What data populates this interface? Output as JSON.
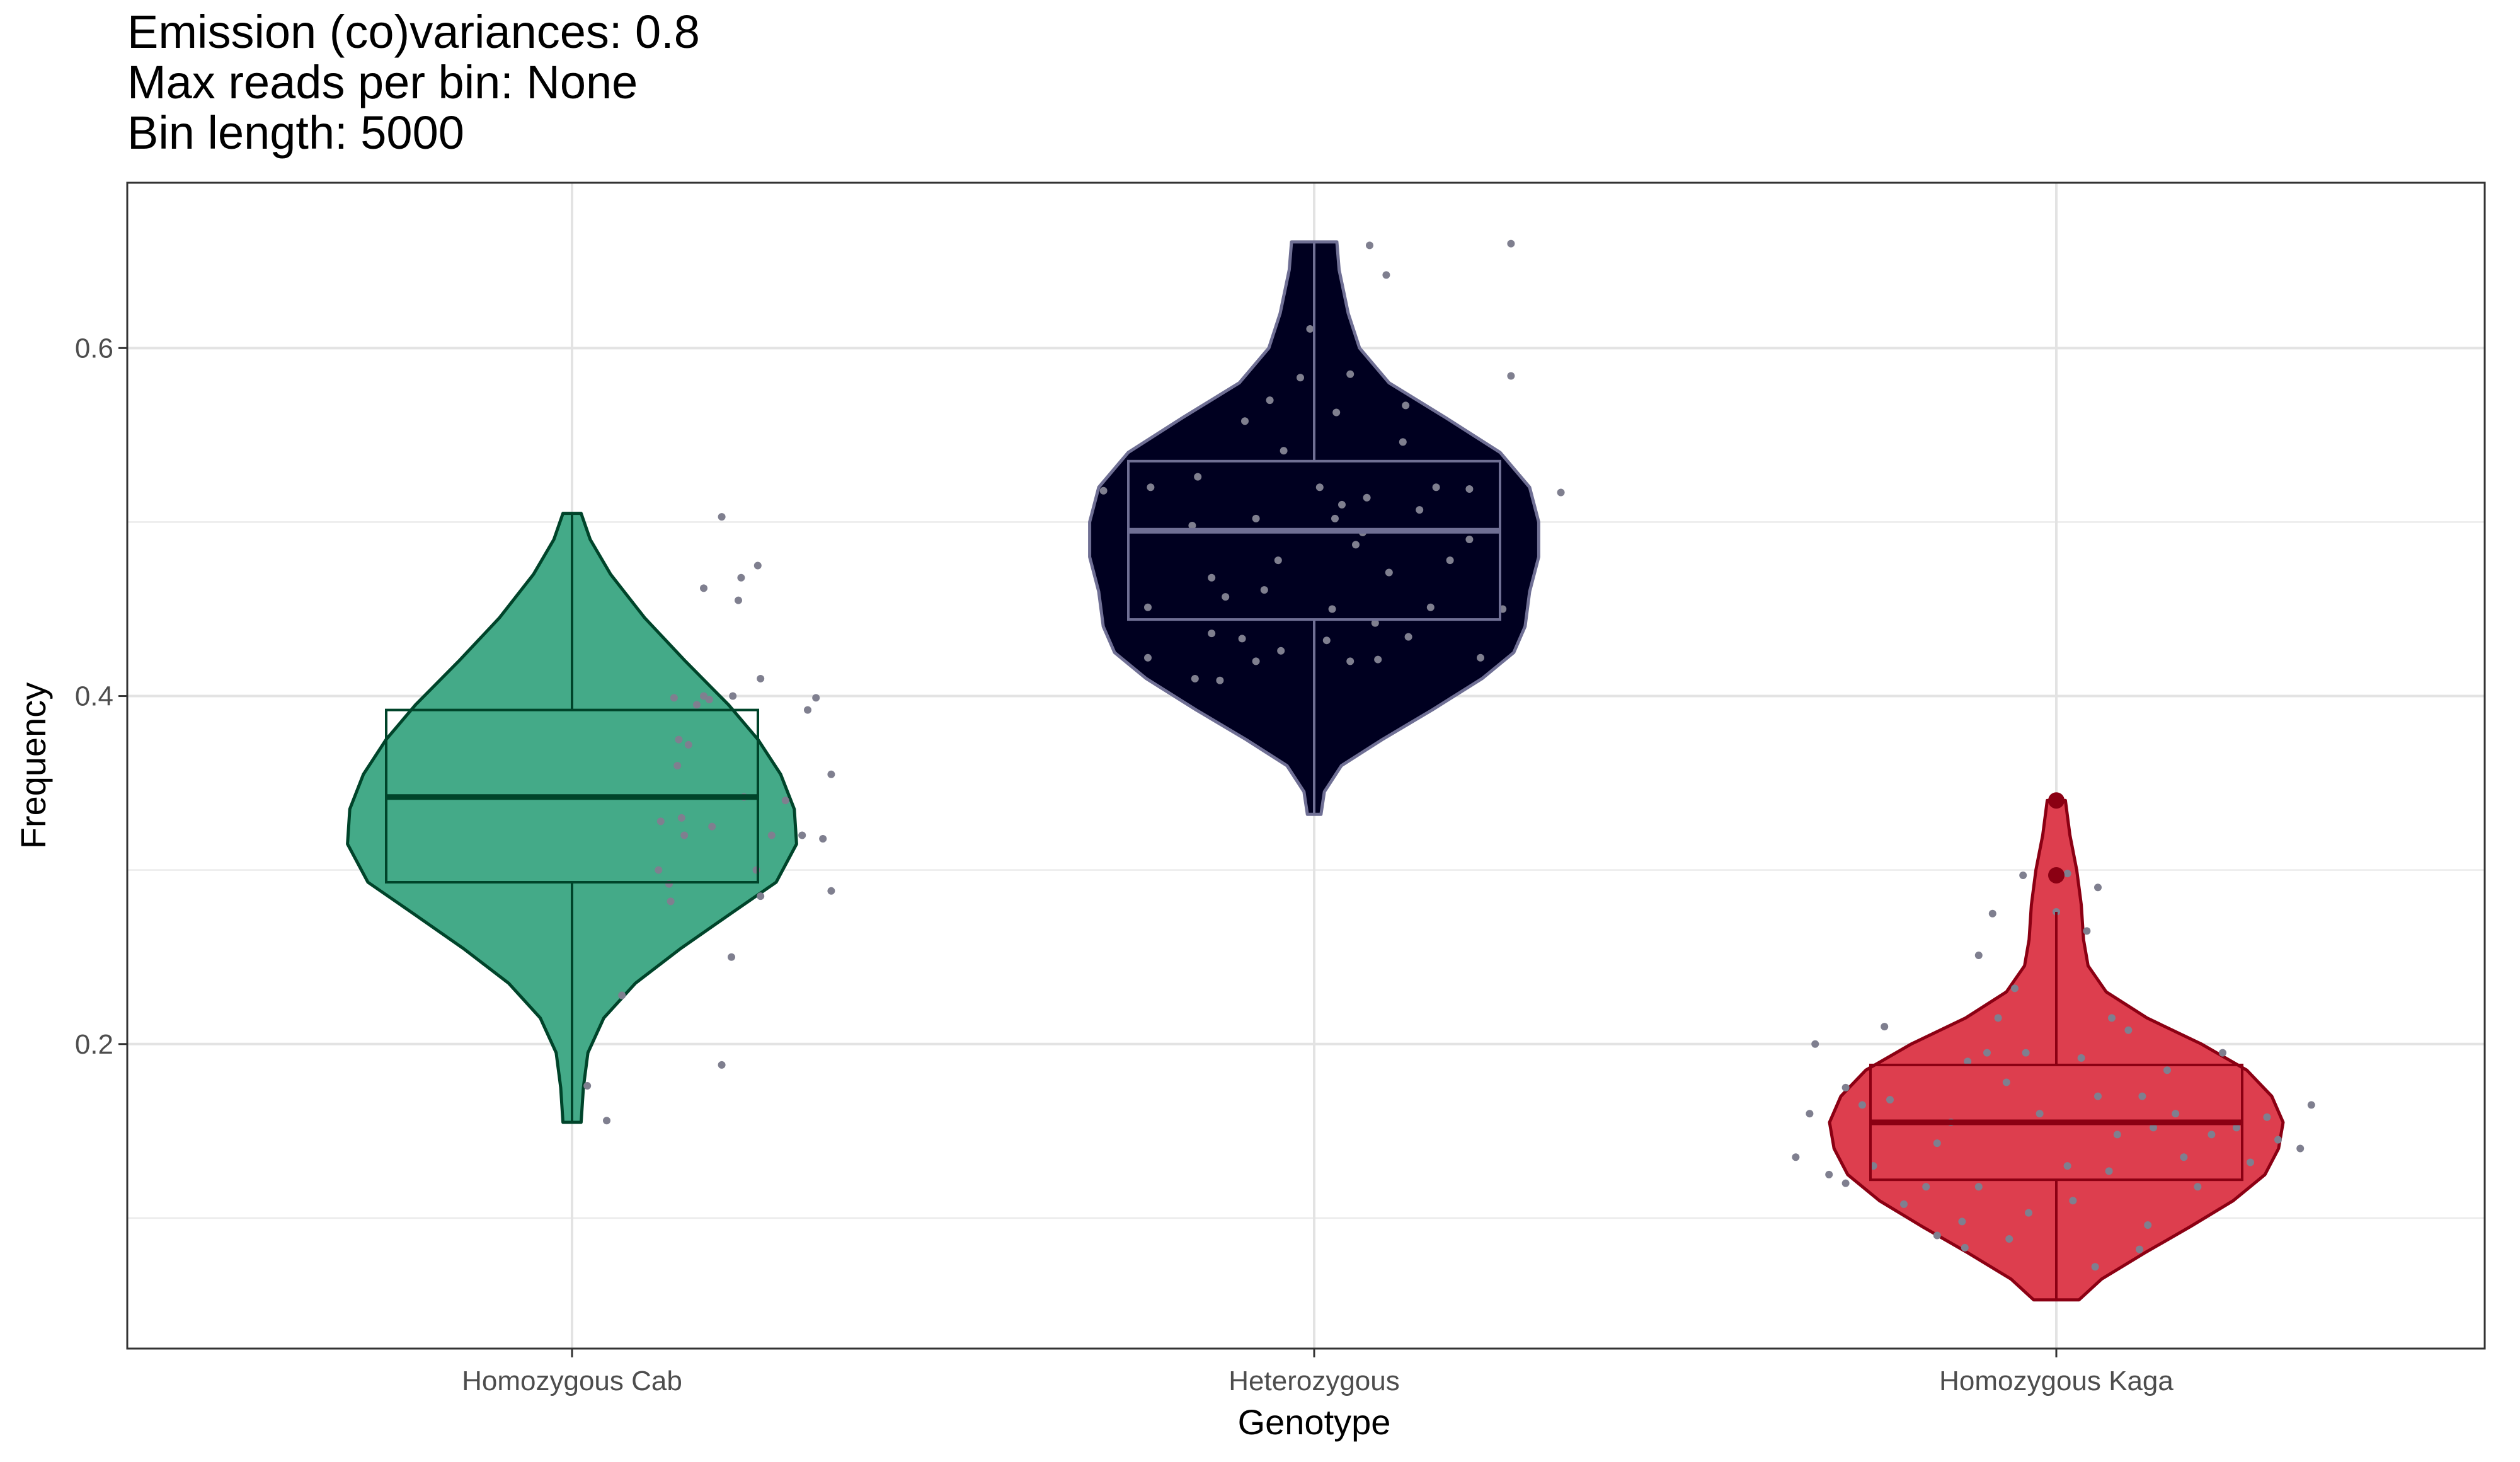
{
  "chart_data": {
    "type": "violin",
    "title_lines": [
      "Emission (co)variances: 0.8",
      "Max reads per bin: None",
      "Bin length: 5000"
    ],
    "xlabel": "Genotype",
    "ylabel": "Frequency",
    "ylim": [
      0.025,
      0.695
    ],
    "yticks": [
      0.2,
      0.4,
      0.6
    ],
    "ytick_labels": [
      "0.2",
      "0.4",
      "0.6"
    ],
    "grid": true,
    "categories": [
      "Homozygous Cab",
      "Heterozygous",
      "Homozygous Kaga"
    ],
    "series": [
      {
        "category": "Homozygous Cab",
        "fill": "#44AA88",
        "line": "#00442A",
        "median_line": "#00442A",
        "violin_range": [
          0.155,
          0.505
        ],
        "box": {
          "q1": 0.293,
          "median": 0.342,
          "q3": 0.392,
          "whisker_low": 0.155,
          "whisker_high": 0.505
        },
        "outliers": [],
        "violin_profile": [
          [
            0.155,
            0.04
          ],
          [
            0.175,
            0.05
          ],
          [
            0.195,
            0.07
          ],
          [
            0.215,
            0.14
          ],
          [
            0.235,
            0.28
          ],
          [
            0.255,
            0.48
          ],
          [
            0.275,
            0.7
          ],
          [
            0.293,
            0.9
          ],
          [
            0.315,
            0.99
          ],
          [
            0.335,
            0.98
          ],
          [
            0.355,
            0.92
          ],
          [
            0.375,
            0.82
          ],
          [
            0.395,
            0.69
          ],
          [
            0.42,
            0.5
          ],
          [
            0.445,
            0.32
          ],
          [
            0.47,
            0.17
          ],
          [
            0.49,
            0.08
          ],
          [
            0.505,
            0.04
          ]
        ],
        "points": [
          [
            0.312,
            0.3
          ],
          [
            0.385,
            0.375
          ],
          [
            0.368,
            0.399
          ],
          [
            0.32,
            0.328
          ],
          [
            0.356,
            0.282
          ],
          [
            0.38,
            0.36
          ],
          [
            0.405,
            0.32
          ],
          [
            0.45,
            0.395
          ],
          [
            0.475,
            0.4
          ],
          [
            0.35,
            0.292
          ],
          [
            0.18,
            0.228
          ],
          [
            0.055,
            0.176
          ],
          [
            0.125,
            0.156
          ],
          [
            0.505,
            0.325
          ],
          [
            0.495,
            0.398
          ],
          [
            0.42,
            0.372
          ],
          [
            0.54,
            0.503
          ],
          [
            0.62,
            0.342
          ],
          [
            0.61,
            0.468
          ],
          [
            0.475,
            0.462
          ],
          [
            0.68,
            0.41
          ],
          [
            0.72,
            0.32
          ],
          [
            0.85,
            0.392
          ],
          [
            0.935,
            0.355
          ],
          [
            0.935,
            0.288
          ],
          [
            0.83,
            0.32
          ],
          [
            0.68,
            0.285
          ],
          [
            0.575,
            0.25
          ],
          [
            0.6,
            0.455
          ],
          [
            0.54,
            0.188
          ],
          [
            0.395,
            0.33
          ],
          [
            0.58,
            0.4
          ],
          [
            0.665,
            0.3
          ],
          [
            0.88,
            0.399
          ],
          [
            0.77,
            0.34
          ],
          [
            0.905,
            0.318
          ],
          [
            0.67,
            0.475
          ]
        ]
      },
      {
        "category": "Heterozygous",
        "fill": "#000020",
        "line": "#6F6F94",
        "median_line": "#6F6F94",
        "violin_range": [
          0.332,
          0.661
        ],
        "box": {
          "q1": 0.444,
          "median": 0.495,
          "q3": 0.535,
          "whisker_low": 0.332,
          "whisker_high": 0.661
        },
        "outliers": [],
        "violin_profile": [
          [
            0.332,
            0.03
          ],
          [
            0.345,
            0.045
          ],
          [
            0.36,
            0.12
          ],
          [
            0.375,
            0.3
          ],
          [
            0.392,
            0.52
          ],
          [
            0.41,
            0.74
          ],
          [
            0.425,
            0.88
          ],
          [
            0.44,
            0.93
          ],
          [
            0.46,
            0.95
          ],
          [
            0.48,
            0.99
          ],
          [
            0.5,
            0.99
          ],
          [
            0.52,
            0.95
          ],
          [
            0.54,
            0.82
          ],
          [
            0.56,
            0.58
          ],
          [
            0.58,
            0.33
          ],
          [
            0.6,
            0.2
          ],
          [
            0.62,
            0.15
          ],
          [
            0.645,
            0.11
          ],
          [
            0.661,
            0.1
          ]
        ],
        "points": [
          [
            -0.76,
            0.518
          ],
          [
            -0.6,
            0.451
          ],
          [
            -0.6,
            0.422
          ],
          [
            -0.44,
            0.498
          ],
          [
            -0.37,
            0.436
          ],
          [
            -0.37,
            0.468
          ],
          [
            -0.43,
            0.41
          ],
          [
            -0.42,
            0.526
          ],
          [
            -0.34,
            0.409
          ],
          [
            -0.32,
            0.457
          ],
          [
            -0.26,
            0.433
          ],
          [
            -0.21,
            0.42
          ],
          [
            -0.18,
            0.461
          ],
          [
            -0.16,
            0.57
          ],
          [
            -0.21,
            0.502
          ],
          [
            -0.25,
            0.558
          ],
          [
            -0.13,
            0.478
          ],
          [
            -0.11,
            0.541
          ],
          [
            -0.05,
            0.583
          ],
          [
            -0.015,
            0.611
          ],
          [
            0.02,
            0.52
          ],
          [
            0.045,
            0.432
          ],
          [
            0.075,
            0.502
          ],
          [
            0.065,
            0.45
          ],
          [
            0.08,
            0.563
          ],
          [
            0.1,
            0.51
          ],
          [
            0.13,
            0.42
          ],
          [
            0.15,
            0.487
          ],
          [
            0.175,
            0.494
          ],
          [
            0.19,
            0.514
          ],
          [
            0.22,
            0.442
          ],
          [
            0.23,
            0.421
          ],
          [
            0.27,
            0.471
          ],
          [
            0.32,
            0.546
          ],
          [
            0.34,
            0.434
          ],
          [
            0.33,
            0.567
          ],
          [
            0.38,
            0.507
          ],
          [
            0.42,
            0.451
          ],
          [
            0.44,
            0.52
          ],
          [
            0.49,
            0.478
          ],
          [
            0.56,
            0.49
          ],
          [
            0.6,
            0.422
          ],
          [
            0.68,
            0.45
          ],
          [
            0.71,
            0.66
          ],
          [
            0.71,
            0.584
          ],
          [
            0.89,
            0.517
          ],
          [
            -0.59,
            0.52
          ],
          [
            -0.12,
            0.426
          ],
          [
            0.13,
            0.585
          ],
          [
            0.56,
            0.519
          ],
          [
            0.26,
            0.642
          ],
          [
            0.2,
            0.659
          ]
        ]
      },
      {
        "category": "Homozygous Kaga",
        "fill": "#DD3E4E",
        "line": "#8B0013",
        "median_line": "#8B0013",
        "violin_range": [
          0.053,
          0.34
        ],
        "box": {
          "q1": 0.122,
          "median": 0.155,
          "q3": 0.188,
          "whisker_low": 0.053,
          "whisker_high": 0.276
        },
        "outliers": [
          0.297,
          0.34
        ],
        "violin_profile": [
          [
            0.053,
            0.1
          ],
          [
            0.065,
            0.2
          ],
          [
            0.08,
            0.39
          ],
          [
            0.095,
            0.59
          ],
          [
            0.11,
            0.78
          ],
          [
            0.125,
            0.92
          ],
          [
            0.14,
            0.98
          ],
          [
            0.155,
            1.0
          ],
          [
            0.17,
            0.95
          ],
          [
            0.185,
            0.84
          ],
          [
            0.2,
            0.64
          ],
          [
            0.215,
            0.4
          ],
          [
            0.23,
            0.22
          ],
          [
            0.245,
            0.14
          ],
          [
            0.26,
            0.12
          ],
          [
            0.28,
            0.11
          ],
          [
            0.3,
            0.09
          ],
          [
            0.32,
            0.06
          ],
          [
            0.34,
            0.04
          ]
        ],
        "points": [
          [
            -0.94,
            0.135
          ],
          [
            -0.89,
            0.16
          ],
          [
            -0.87,
            0.2
          ],
          [
            -0.76,
            0.175
          ],
          [
            -0.82,
            0.125
          ],
          [
            -0.7,
            0.165
          ],
          [
            -0.66,
            0.13
          ],
          [
            -0.62,
            0.21
          ],
          [
            -0.6,
            0.168
          ],
          [
            -0.55,
            0.108
          ],
          [
            -0.47,
            0.118
          ],
          [
            -0.43,
            0.143
          ],
          [
            -0.43,
            0.09
          ],
          [
            -0.38,
            0.155
          ],
          [
            -0.34,
            0.098
          ],
          [
            -0.32,
            0.19
          ],
          [
            -0.28,
            0.118
          ],
          [
            -0.25,
            0.195
          ],
          [
            -0.21,
            0.215
          ],
          [
            -0.18,
            0.178
          ],
          [
            -0.15,
            0.232
          ],
          [
            -0.11,
            0.195
          ],
          [
            -0.1,
            0.103
          ],
          [
            -0.06,
            0.16
          ],
          [
            0.0,
            0.276
          ],
          [
            0.04,
            0.13
          ],
          [
            0.06,
            0.11
          ],
          [
            0.09,
            0.192
          ],
          [
            0.11,
            0.265
          ],
          [
            0.15,
            0.17
          ],
          [
            0.19,
            0.127
          ],
          [
            0.22,
            0.148
          ],
          [
            0.26,
            0.208
          ],
          [
            0.31,
            0.17
          ],
          [
            0.35,
            0.152
          ],
          [
            0.4,
            0.185
          ],
          [
            0.43,
            0.16
          ],
          [
            0.46,
            0.135
          ],
          [
            0.51,
            0.118
          ],
          [
            0.56,
            0.148
          ],
          [
            0.6,
            0.195
          ],
          [
            0.65,
            0.152
          ],
          [
            0.7,
            0.132
          ],
          [
            0.76,
            0.158
          ],
          [
            0.8,
            0.145
          ],
          [
            0.88,
            0.14
          ],
          [
            0.92,
            0.165
          ],
          [
            -0.23,
            0.275
          ],
          [
            -0.76,
            0.12
          ],
          [
            0.2,
            0.215
          ],
          [
            0.33,
            0.096
          ],
          [
            0.14,
            0.072
          ],
          [
            0.3,
            0.082
          ],
          [
            -0.17,
            0.088
          ],
          [
            -0.33,
            0.083
          ],
          [
            -0.12,
            0.297
          ],
          [
            0.0,
            0.34
          ],
          [
            -0.28,
            0.251
          ],
          [
            0.15,
            0.29
          ],
          [
            0.04,
            0.298
          ]
        ]
      }
    ],
    "point_color": "#7F7F8F"
  }
}
